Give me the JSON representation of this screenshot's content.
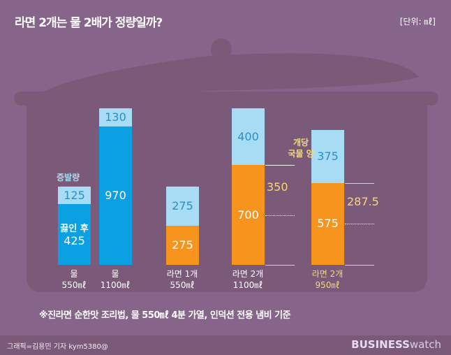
{
  "title": "라면 2개는 물 2배가 정량일까?",
  "unit": "[단위: ㎖]",
  "chart_data": {
    "type": "bar",
    "stacked": true,
    "categories": [
      [
        "물",
        "550㎖"
      ],
      [
        "물",
        "1100㎖"
      ],
      [
        "라면 1개",
        "550㎖"
      ],
      [
        "라면 2개",
        "1100㎖"
      ],
      [
        "라면 2개",
        "950㎖"
      ]
    ],
    "bars": [
      {
        "bottom": 425,
        "top": 125,
        "bottom_color": "#0aa0e2",
        "bottom_label": "끓인 후",
        "top_label": "증발량"
      },
      {
        "bottom": 970,
        "top": 130,
        "bottom_color": "#0aa0e2"
      },
      {
        "bottom": 275,
        "top": 275,
        "bottom_color": "#f7941d"
      },
      {
        "bottom": 700,
        "top": 400,
        "bottom_color": "#f7941d",
        "per_pack": "350"
      },
      {
        "bottom": 575,
        "top": 375,
        "bottom_color": "#f7941d",
        "per_pack": "287.5"
      }
    ],
    "per_pack_label": [
      "개당",
      "국물 양"
    ],
    "highlight_category": 4,
    "colors": {
      "evaporation": "#a8dcf5",
      "water": "#0aa0e2",
      "soup": "#f7941d",
      "highlight_text": "#f5d77a"
    }
  },
  "note": "※진라면 순한맛 조리법, 물 550㎖ 4분 가열, 인덕션 전용 냄비 기준",
  "credit": "그래픽=김용민 기자 kym5380@",
  "logo": {
    "bold": "BUSINESS",
    "light": "watch"
  }
}
